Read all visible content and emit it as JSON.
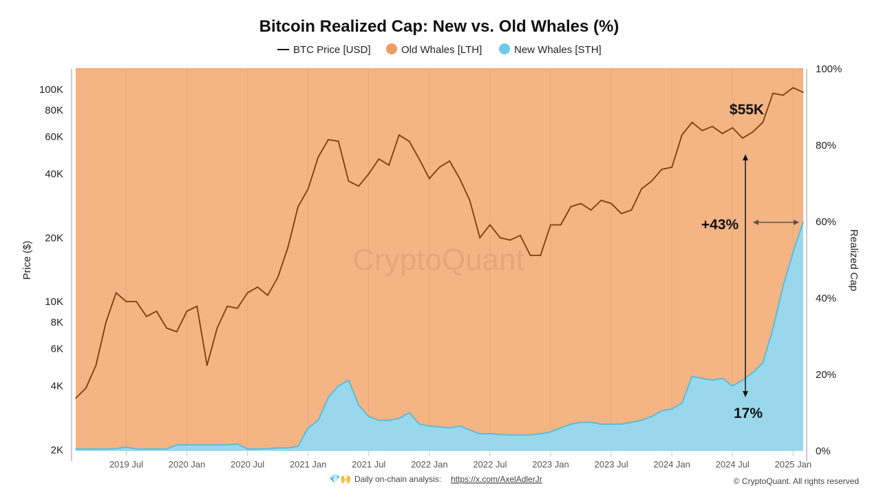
{
  "chart_data": {
    "type": "area",
    "title": "Bitcoin Realized Cap: New vs. Old Whales (%)",
    "legend": {
      "placement": "top-center",
      "entries": [
        "BTC Price [USD]",
        "Old Whales [LTH]",
        "New Whales [STH]"
      ]
    },
    "ylabel_left": "Price ($)",
    "ylabel_right": "Realized Cap",
    "y_left_scale": "log",
    "y_left_ticks": [
      "2K",
      "4K",
      "6K",
      "8K",
      "10K",
      "20K",
      "40K",
      "60K",
      "80K",
      "100K"
    ],
    "y_left_tick_values": [
      2000,
      4000,
      6000,
      8000,
      10000,
      20000,
      40000,
      60000,
      80000,
      100000
    ],
    "y_right_ticks": [
      "0%",
      "20%",
      "40%",
      "60%",
      "80%",
      "100%"
    ],
    "y_right_range": [
      0,
      100
    ],
    "x_ticks": [
      "2019 Jul",
      "2020 Jan",
      "2020 Jul",
      "2021 Jan",
      "2021 Jul",
      "2022 Jan",
      "2022 Jul",
      "2023 Jan",
      "2023 Jul",
      "2024 Jan",
      "2024 Jul",
      "2025 Jan"
    ],
    "x_range": [
      "2019-02",
      "2025-02"
    ],
    "colors": {
      "price": "#7a3d0c",
      "old_whales": "#f4b483",
      "new_whales": "#99d8ec",
      "new_whales_line": "#5bbcd8"
    },
    "dates": [
      "2019-02",
      "2019-03",
      "2019-04",
      "2019-05",
      "2019-06",
      "2019-07",
      "2019-08",
      "2019-09",
      "2019-10",
      "2019-11",
      "2019-12",
      "2020-01",
      "2020-02",
      "2020-03",
      "2020-04",
      "2020-05",
      "2020-06",
      "2020-07",
      "2020-08",
      "2020-09",
      "2020-10",
      "2020-11",
      "2020-12",
      "2021-01",
      "2021-02",
      "2021-03",
      "2021-04",
      "2021-05",
      "2021-06",
      "2021-07",
      "2021-08",
      "2021-09",
      "2021-10",
      "2021-11",
      "2021-12",
      "2022-01",
      "2022-02",
      "2022-03",
      "2022-04",
      "2022-05",
      "2022-06",
      "2022-07",
      "2022-08",
      "2022-09",
      "2022-10",
      "2022-11",
      "2022-12",
      "2023-01",
      "2023-02",
      "2023-03",
      "2023-04",
      "2023-05",
      "2023-06",
      "2023-07",
      "2023-08",
      "2023-09",
      "2023-10",
      "2023-11",
      "2023-12",
      "2024-01",
      "2024-02",
      "2024-03",
      "2024-04",
      "2024-05",
      "2024-06",
      "2024-07",
      "2024-08",
      "2024-09",
      "2024-10",
      "2024-11",
      "2024-12",
      "2025-01",
      "2025-02"
    ],
    "series": [
      {
        "name": "BTC Price [USD]",
        "values": [
          3500,
          3900,
          5000,
          8000,
          11000,
          10000,
          10000,
          8500,
          9000,
          7500,
          7200,
          9000,
          9500,
          5000,
          7500,
          9500,
          9300,
          11000,
          11700,
          10700,
          13000,
          18000,
          28000,
          34000,
          48000,
          58000,
          57000,
          37000,
          35000,
          40000,
          47000,
          44000,
          61000,
          57000,
          47000,
          38000,
          43000,
          46000,
          38000,
          30000,
          20000,
          23000,
          20000,
          19500,
          20500,
          16500,
          16500,
          23000,
          23000,
          28000,
          29000,
          27000,
          30000,
          29000,
          26000,
          27000,
          34000,
          37000,
          42000,
          43000,
          61000,
          70000,
          64000,
          67000,
          62000,
          66000,
          59000,
          63000,
          70000,
          96000,
          94000,
          102000,
          97000
        ]
      },
      {
        "name": "New Whales [STH]",
        "values": [
          0.5,
          0.5,
          0.5,
          0.5,
          0.6,
          1,
          0.5,
          0.5,
          0.5,
          0.5,
          1.6,
          1.6,
          1.6,
          1.6,
          1.6,
          1.6,
          1.8,
          0.5,
          0.5,
          0.6,
          0.8,
          0.8,
          1.2,
          6,
          8,
          14,
          17,
          18.5,
          12,
          9,
          8,
          8,
          8.5,
          10,
          7,
          6.5,
          6.3,
          6,
          6.5,
          5.5,
          4.5,
          4.5,
          4.3,
          4.2,
          4.2,
          4.2,
          4.5,
          5,
          6,
          7,
          7.5,
          7.5,
          7,
          7,
          7,
          7.5,
          8,
          9,
          10.5,
          11,
          12.5,
          19.5,
          19,
          18.5,
          19,
          17,
          18.5,
          20.5,
          23,
          32,
          43,
          52,
          60
        ]
      },
      {
        "name": "Old Whales [LTH]",
        "values": "remainder to 100%"
      }
    ],
    "annotations": {
      "price_label": "$55K",
      "change_label": "+43%",
      "sth_label": "17%"
    }
  },
  "watermark": "CryptoQuant",
  "footer": {
    "prefix": "Daily on-chain analysis: ",
    "link": "https://x.com/AxelAdlerJr",
    "copyright": "© CryptoQuant. All rights reserved"
  }
}
